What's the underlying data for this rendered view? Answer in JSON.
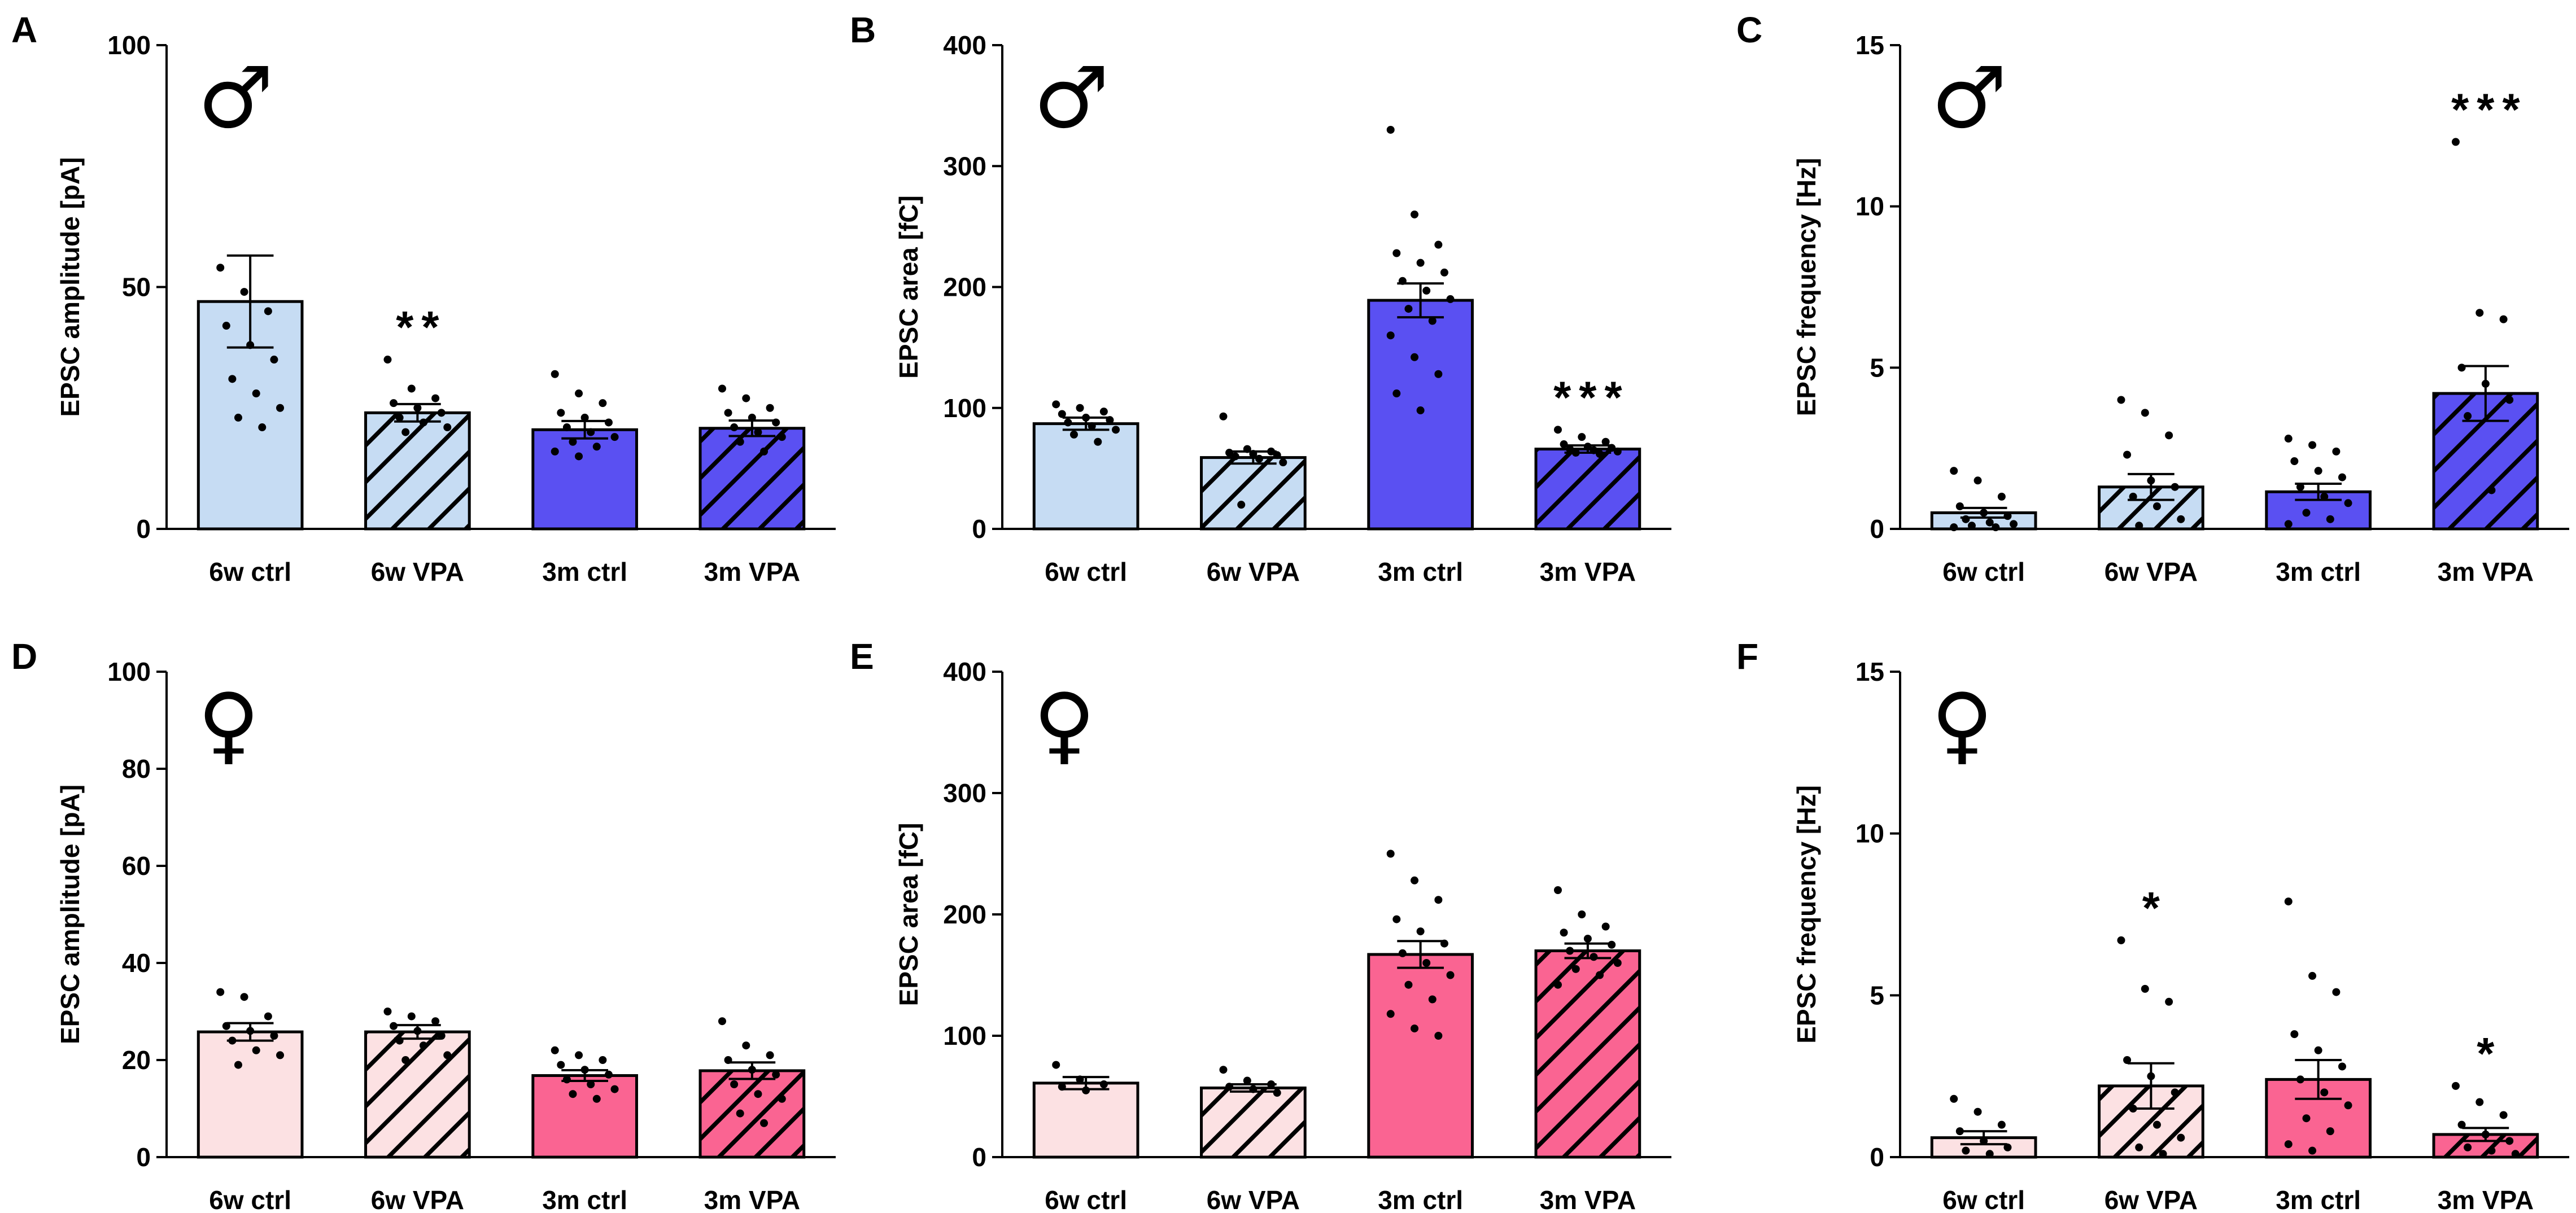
{
  "colors": {
    "male_6w": "#c6dcf3",
    "male_3m": "#5a50f2",
    "female_6w": "#fce1e3",
    "female_3m": "#fa6492"
  },
  "chart_data": [
    {
      "panel": "A",
      "type": "bar",
      "sex": "male",
      "sex_symbol": "♂",
      "ylabel": "EPSC amplitude [pA]",
      "ylim": [
        0,
        100
      ],
      "yticks": [
        0,
        50,
        100
      ],
      "categories": [
        "6w ctrl",
        "6w VPA",
        "3m ctrl",
        "3m VPA"
      ],
      "values": [
        47,
        24,
        20.5,
        20.8
      ],
      "sem": [
        9.5,
        1.8,
        1.8,
        1.6
      ],
      "hatched": [
        false,
        true,
        false,
        true
      ],
      "fill": [
        "male_6w",
        "male_6w",
        "male_3m",
        "male_3m"
      ],
      "significance": [
        "",
        "**",
        "",
        ""
      ],
      "points": [
        [
          54,
          49,
          45,
          42,
          38,
          35,
          31,
          28,
          25,
          23,
          21
        ],
        [
          35,
          29,
          27,
          26,
          25,
          24,
          23,
          22,
          21,
          20
        ],
        [
          32,
          28,
          26,
          24,
          23,
          22,
          21,
          20,
          19,
          18,
          17,
          16,
          15
        ],
        [
          29,
          27,
          25,
          24,
          23,
          22,
          21,
          20,
          19,
          18,
          16
        ]
      ]
    },
    {
      "panel": "B",
      "type": "bar",
      "sex": "male",
      "sex_symbol": "♂",
      "ylabel": "EPSC area [fC]",
      "ylim": [
        0,
        400
      ],
      "yticks": [
        0,
        100,
        200,
        300,
        400
      ],
      "categories": [
        "6w ctrl",
        "6w VPA",
        "3m ctrl",
        "3m VPA"
      ],
      "values": [
        87,
        59,
        189,
        66
      ],
      "sem": [
        5,
        5,
        14,
        3
      ],
      "hatched": [
        false,
        true,
        false,
        true
      ],
      "fill": [
        "male_6w",
        "male_6w",
        "male_3m",
        "male_3m"
      ],
      "significance": [
        "",
        "",
        "",
        "***"
      ],
      "points": [
        [
          103,
          100,
          97,
          95,
          92,
          90,
          88,
          85,
          82,
          78,
          72
        ],
        [
          93,
          66,
          64,
          63,
          62,
          61,
          60,
          58,
          55,
          20
        ],
        [
          330,
          260,
          235,
          228,
          220,
          212,
          205,
          197,
          190,
          182,
          172,
          160,
          142,
          128,
          112,
          98
        ],
        [
          82,
          76,
          72,
          70,
          68,
          67,
          66,
          65,
          64,
          63,
          62
        ]
      ]
    },
    {
      "panel": "C",
      "type": "bar",
      "sex": "male",
      "sex_symbol": "♂",
      "ylabel": "EPSC frequency [Hz]",
      "ylim": [
        0,
        15
      ],
      "yticks": [
        0,
        5,
        10,
        15
      ],
      "categories": [
        "6w ctrl",
        "6w VPA",
        "3m ctrl",
        "3m VPA"
      ],
      "values": [
        0.5,
        1.3,
        1.15,
        4.2
      ],
      "sem": [
        0.15,
        0.4,
        0.25,
        0.85
      ],
      "hatched": [
        false,
        true,
        false,
        true
      ],
      "fill": [
        "male_6w",
        "male_6w",
        "male_3m",
        "male_3m"
      ],
      "significance": [
        "",
        "",
        "",
        "***"
      ],
      "points": [
        [
          1.8,
          1.5,
          1.0,
          0.7,
          0.5,
          0.4,
          0.3,
          0.2,
          0.15,
          0.1,
          0.05,
          0.05
        ],
        [
          4.0,
          3.6,
          2.9,
          2.3,
          1.5,
          1.3,
          1.0,
          0.7,
          0.3,
          0.1
        ],
        [
          2.8,
          2.6,
          2.4,
          2.1,
          1.8,
          1.6,
          1.3,
          1.0,
          0.8,
          0.5,
          0.3,
          0.15
        ],
        [
          12.0,
          6.7,
          6.5,
          5.0,
          4.5,
          4.0,
          3.5,
          1.2
        ]
      ]
    },
    {
      "panel": "D",
      "type": "bar",
      "sex": "female",
      "sex_symbol": "♀",
      "ylabel": "EPSC amplitude [pA]",
      "ylim": [
        0,
        100
      ],
      "yticks": [
        0,
        20,
        40,
        60,
        80,
        100
      ],
      "categories": [
        "6w ctrl",
        "6w VPA",
        "3m ctrl",
        "3m VPA"
      ],
      "values": [
        25.8,
        25.8,
        16.8,
        17.8
      ],
      "sem": [
        1.8,
        1.4,
        1.1,
        1.7
      ],
      "hatched": [
        false,
        true,
        false,
        true
      ],
      "fill": [
        "female_6w",
        "female_6w",
        "female_3m",
        "female_3m"
      ],
      "significance": [
        "",
        "",
        "",
        ""
      ],
      "points": [
        [
          34,
          33,
          29,
          27,
          26,
          25,
          24,
          22,
          21,
          19
        ],
        [
          30,
          29,
          28,
          27,
          26,
          25,
          24,
          23,
          21,
          20
        ],
        [
          22,
          21,
          20,
          19,
          18,
          17,
          16,
          15,
          14,
          13,
          12
        ],
        [
          28,
          23,
          21,
          20,
          18,
          17,
          15,
          13,
          12,
          9,
          7
        ]
      ]
    },
    {
      "panel": "E",
      "type": "bar",
      "sex": "female",
      "sex_symbol": "♀",
      "ylabel": "EPSC area [fC]",
      "ylim": [
        0,
        400
      ],
      "yticks": [
        0,
        100,
        200,
        300,
        400
      ],
      "categories": [
        "6w ctrl",
        "6w VPA",
        "3m ctrl",
        "3m VPA"
      ],
      "values": [
        61,
        57,
        167,
        170
      ],
      "sem": [
        5,
        3,
        11,
        6
      ],
      "hatched": [
        false,
        true,
        false,
        true
      ],
      "fill": [
        "female_6w",
        "female_6w",
        "female_3m",
        "female_3m"
      ],
      "significance": [
        "",
        "",
        "",
        ""
      ],
      "points": [
        [
          76,
          64,
          60,
          58,
          55
        ],
        [
          72,
          63,
          60,
          58,
          56,
          53
        ],
        [
          250,
          228,
          212,
          196,
          186,
          176,
          168,
          160,
          150,
          142,
          130,
          118,
          106,
          100
        ],
        [
          220,
          200,
          190,
          185,
          180,
          175,
          170,
          165,
          160,
          155,
          150,
          142
        ]
      ]
    },
    {
      "panel": "F",
      "type": "bar",
      "sex": "female",
      "sex_symbol": "♀",
      "ylabel": "EPSC frequency [Hz]",
      "ylim": [
        0,
        15
      ],
      "yticks": [
        0,
        5,
        10,
        15
      ],
      "categories": [
        "6w ctrl",
        "6w VPA",
        "3m ctrl",
        "3m VPA"
      ],
      "values": [
        0.6,
        2.2,
        2.4,
        0.7
      ],
      "sem": [
        0.2,
        0.7,
        0.6,
        0.2
      ],
      "hatched": [
        false,
        true,
        false,
        true
      ],
      "fill": [
        "female_6w",
        "female_6w",
        "female_3m",
        "female_3m"
      ],
      "significance": [
        "",
        "*",
        "",
        "*"
      ],
      "points": [
        [
          1.8,
          1.4,
          1.0,
          0.8,
          0.5,
          0.3,
          0.2,
          0.1
        ],
        [
          6.7,
          5.2,
          4.8,
          3.0,
          2.5,
          2.0,
          1.5,
          1.0,
          0.6,
          0.3,
          0.1
        ],
        [
          7.9,
          5.6,
          5.1,
          3.8,
          3.3,
          2.8,
          2.4,
          2.0,
          1.6,
          1.2,
          0.8,
          0.4,
          0.2
        ],
        [
          2.2,
          1.7,
          1.3,
          1.0,
          0.7,
          0.5,
          0.3,
          0.2,
          0.1
        ]
      ]
    }
  ]
}
